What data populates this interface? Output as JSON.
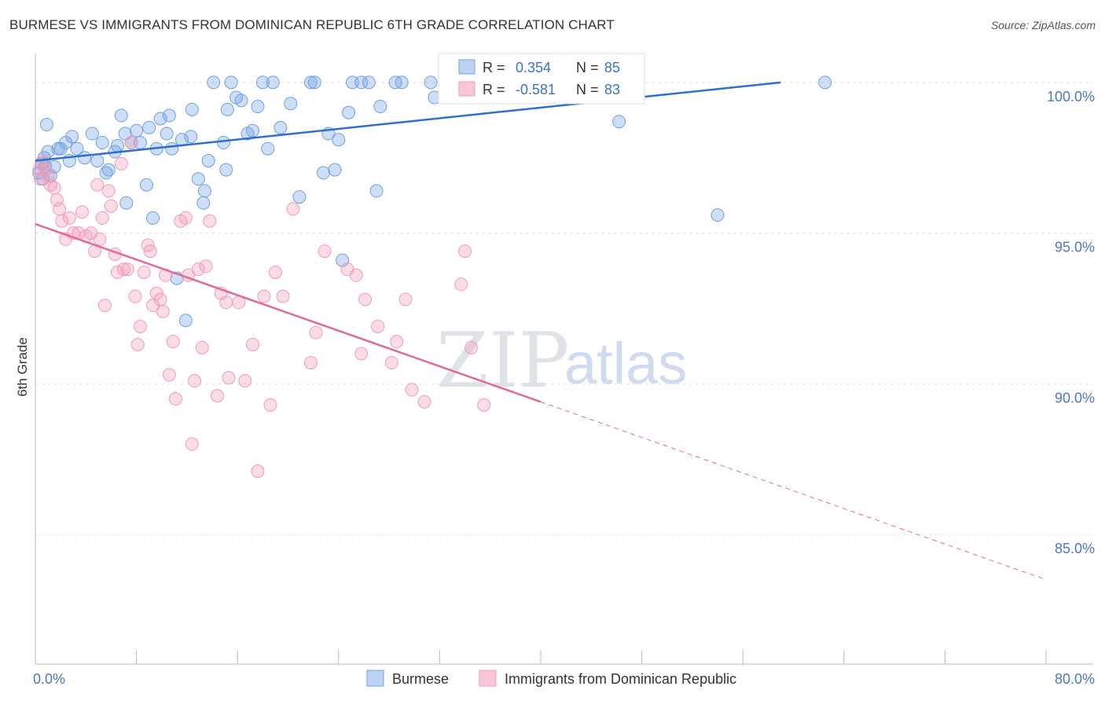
{
  "header": {
    "title": "BURMESE VS IMMIGRANTS FROM DOMINICAN REPUBLIC 6TH GRADE CORRELATION CHART",
    "source": "Source: ZipAtlas.com"
  },
  "watermark": {
    "zip": "ZIP",
    "atlas": "atlas"
  },
  "stats": [
    {
      "r_label": "R =",
      "r_value": "0.354",
      "n_label": "N =",
      "n_value": "85"
    },
    {
      "r_label": "R =",
      "r_value": "-0.581",
      "n_label": "N =",
      "n_value": "83"
    }
  ],
  "chart_data": {
    "type": "scatter",
    "title": "BURMESE VS IMMIGRANTS FROM DOMINICAN REPUBLIC 6TH GRADE CORRELATION CHART",
    "ylabel": "6th Grade",
    "xlim": [
      0,
      80
    ],
    "ylim": [
      80.7,
      100.7
    ],
    "x_tick_labels": [
      {
        "value": 0,
        "label": "0.0%"
      },
      {
        "value": 80,
        "label": "80.0%"
      }
    ],
    "y_tick_labels": [
      {
        "value": 100,
        "label": "100.0%"
      },
      {
        "value": 95,
        "label": "95.0%"
      },
      {
        "value": 90,
        "label": "90.0%"
      },
      {
        "value": 85,
        "label": "85.0%"
      }
    ],
    "grid": true,
    "legend_position": "bottom-center",
    "colors": {
      "burmese": "#6fa1e2",
      "burmese_line": "#2f6fd0",
      "dominican": "#f29bb8",
      "dominican_line": "#e06a96",
      "tick": "#4a78c2"
    },
    "series": [
      {
        "name": "Burmese",
        "trend": {
          "x": [
            0,
            59
          ],
          "y": [
            97.4,
            100.0
          ],
          "r": 0.354,
          "n": 85
        },
        "points": [
          [
            0.3,
            97.0
          ],
          [
            0.5,
            97.3
          ],
          [
            0.6,
            96.8
          ],
          [
            0.7,
            97.5
          ],
          [
            0.8,
            97.2
          ],
          [
            1.0,
            97.7
          ],
          [
            1.2,
            96.9
          ],
          [
            1.5,
            97.2
          ],
          [
            1.8,
            97.8
          ],
          [
            2.0,
            97.8
          ],
          [
            2.4,
            98.0
          ],
          [
            2.9,
            98.2
          ],
          [
            3.3,
            97.8
          ],
          [
            3.9,
            97.5
          ],
          [
            4.5,
            98.3
          ],
          [
            4.9,
            97.4
          ],
          [
            5.3,
            98.0
          ],
          [
            5.6,
            97.0
          ],
          [
            5.8,
            97.1
          ],
          [
            6.3,
            97.7
          ],
          [
            6.5,
            97.9
          ],
          [
            6.8,
            98.9
          ],
          [
            7.1,
            98.3
          ],
          [
            7.6,
            98.0
          ],
          [
            8.0,
            98.4
          ],
          [
            8.3,
            98.0
          ],
          [
            8.8,
            96.6
          ],
          [
            9.0,
            98.5
          ],
          [
            9.3,
            95.5
          ],
          [
            9.6,
            97.8
          ],
          [
            9.9,
            98.8
          ],
          [
            10.4,
            98.3
          ],
          [
            10.6,
            98.9
          ],
          [
            10.8,
            97.8
          ],
          [
            11.2,
            93.5
          ],
          [
            11.6,
            98.1
          ],
          [
            11.9,
            92.1
          ],
          [
            12.3,
            98.2
          ],
          [
            12.4,
            99.1
          ],
          [
            12.9,
            96.8
          ],
          [
            13.3,
            96.0
          ],
          [
            13.4,
            96.4
          ],
          [
            13.7,
            97.4
          ],
          [
            14.1,
            100.0
          ],
          [
            14.9,
            98.0
          ],
          [
            15.1,
            97.1
          ],
          [
            15.2,
            99.1
          ],
          [
            15.5,
            100.0
          ],
          [
            15.9,
            99.5
          ],
          [
            16.3,
            99.4
          ],
          [
            16.8,
            98.3
          ],
          [
            17.2,
            98.4
          ],
          [
            17.6,
            99.2
          ],
          [
            18.0,
            100.0
          ],
          [
            18.4,
            97.8
          ],
          [
            18.8,
            100.0
          ],
          [
            19.4,
            98.5
          ],
          [
            20.2,
            99.3
          ],
          [
            20.9,
            96.2
          ],
          [
            21.8,
            100.0
          ],
          [
            22.1,
            100.0
          ],
          [
            22.8,
            97.0
          ],
          [
            23.2,
            98.3
          ],
          [
            23.7,
            97.1
          ],
          [
            24.0,
            98.1
          ],
          [
            24.3,
            94.1
          ],
          [
            24.8,
            99.0
          ],
          [
            25.1,
            100.0
          ],
          [
            25.8,
            100.0
          ],
          [
            26.4,
            100.0
          ],
          [
            27.0,
            96.4
          ],
          [
            27.3,
            99.2
          ],
          [
            28.5,
            100.0
          ],
          [
            29.0,
            100.0
          ],
          [
            31.3,
            100.0
          ],
          [
            31.6,
            99.5
          ],
          [
            33.2,
            100.0
          ],
          [
            37.5,
            100.0
          ],
          [
            41.6,
            100.0
          ],
          [
            46.2,
            98.7
          ],
          [
            54.0,
            95.6
          ],
          [
            62.5,
            100.0
          ],
          [
            0.9,
            98.6
          ],
          [
            2.7,
            97.4
          ],
          [
            7.2,
            96.0
          ]
        ]
      },
      {
        "name": "Immigrants from Dominican Republic",
        "trend": {
          "x": [
            0,
            40
          ],
          "y": [
            95.3,
            89.4
          ],
          "dashed_to": {
            "x": 80,
            "y": 83.5
          },
          "r": -0.581,
          "n": 83
        },
        "points": [
          [
            0.3,
            97.1
          ],
          [
            0.4,
            96.8
          ],
          [
            0.6,
            97.4
          ],
          [
            0.8,
            97.1
          ],
          [
            1.0,
            96.9
          ],
          [
            1.2,
            96.6
          ],
          [
            1.5,
            96.5
          ],
          [
            1.7,
            96.1
          ],
          [
            1.9,
            95.8
          ],
          [
            2.1,
            95.4
          ],
          [
            2.4,
            94.8
          ],
          [
            2.7,
            95.5
          ],
          [
            3.0,
            95.0
          ],
          [
            3.4,
            95.0
          ],
          [
            3.7,
            95.7
          ],
          [
            4.0,
            94.9
          ],
          [
            4.4,
            95.0
          ],
          [
            4.7,
            94.4
          ],
          [
            4.9,
            96.6
          ],
          [
            5.1,
            94.8
          ],
          [
            5.3,
            95.5
          ],
          [
            5.5,
            92.6
          ],
          [
            5.8,
            96.4
          ],
          [
            6.0,
            95.9
          ],
          [
            6.3,
            94.3
          ],
          [
            6.5,
            93.7
          ],
          [
            6.8,
            97.3
          ],
          [
            7.0,
            93.8
          ],
          [
            7.3,
            93.8
          ],
          [
            7.6,
            98.0
          ],
          [
            7.9,
            92.9
          ],
          [
            8.1,
            91.3
          ],
          [
            8.3,
            91.9
          ],
          [
            8.6,
            93.7
          ],
          [
            8.9,
            94.6
          ],
          [
            9.1,
            94.4
          ],
          [
            9.3,
            92.6
          ],
          [
            9.6,
            93.0
          ],
          [
            9.9,
            92.8
          ],
          [
            10.1,
            92.4
          ],
          [
            10.3,
            93.6
          ],
          [
            10.6,
            90.3
          ],
          [
            10.9,
            91.4
          ],
          [
            11.1,
            89.5
          ],
          [
            11.5,
            95.4
          ],
          [
            11.9,
            95.5
          ],
          [
            12.1,
            93.6
          ],
          [
            12.4,
            88.0
          ],
          [
            12.6,
            90.1
          ],
          [
            12.9,
            93.8
          ],
          [
            13.2,
            91.2
          ],
          [
            13.5,
            93.9
          ],
          [
            13.8,
            95.4
          ],
          [
            14.4,
            89.6
          ],
          [
            14.7,
            93.0
          ],
          [
            15.1,
            92.7
          ],
          [
            15.3,
            90.2
          ],
          [
            16.1,
            92.7
          ],
          [
            16.6,
            90.1
          ],
          [
            17.2,
            91.3
          ],
          [
            17.6,
            87.1
          ],
          [
            18.1,
            92.9
          ],
          [
            18.6,
            89.3
          ],
          [
            19.0,
            93.7
          ],
          [
            19.6,
            92.9
          ],
          [
            20.4,
            95.8
          ],
          [
            21.8,
            90.7
          ],
          [
            22.2,
            91.7
          ],
          [
            22.9,
            94.4
          ],
          [
            24.7,
            93.8
          ],
          [
            25.4,
            93.6
          ],
          [
            25.8,
            91.0
          ],
          [
            26.1,
            92.8
          ],
          [
            27.1,
            91.9
          ],
          [
            28.2,
            90.7
          ],
          [
            28.6,
            91.4
          ],
          [
            29.3,
            92.8
          ],
          [
            29.8,
            89.8
          ],
          [
            30.8,
            89.4
          ],
          [
            33.7,
            93.3
          ],
          [
            34.0,
            94.4
          ],
          [
            34.5,
            91.2
          ],
          [
            35.5,
            89.3
          ]
        ]
      }
    ]
  },
  "legend": {
    "items": [
      {
        "label": "Burmese",
        "color": "#6fa1e2"
      },
      {
        "label": "Immigrants from Dominican Republic",
        "color": "#f29bb8"
      }
    ]
  }
}
